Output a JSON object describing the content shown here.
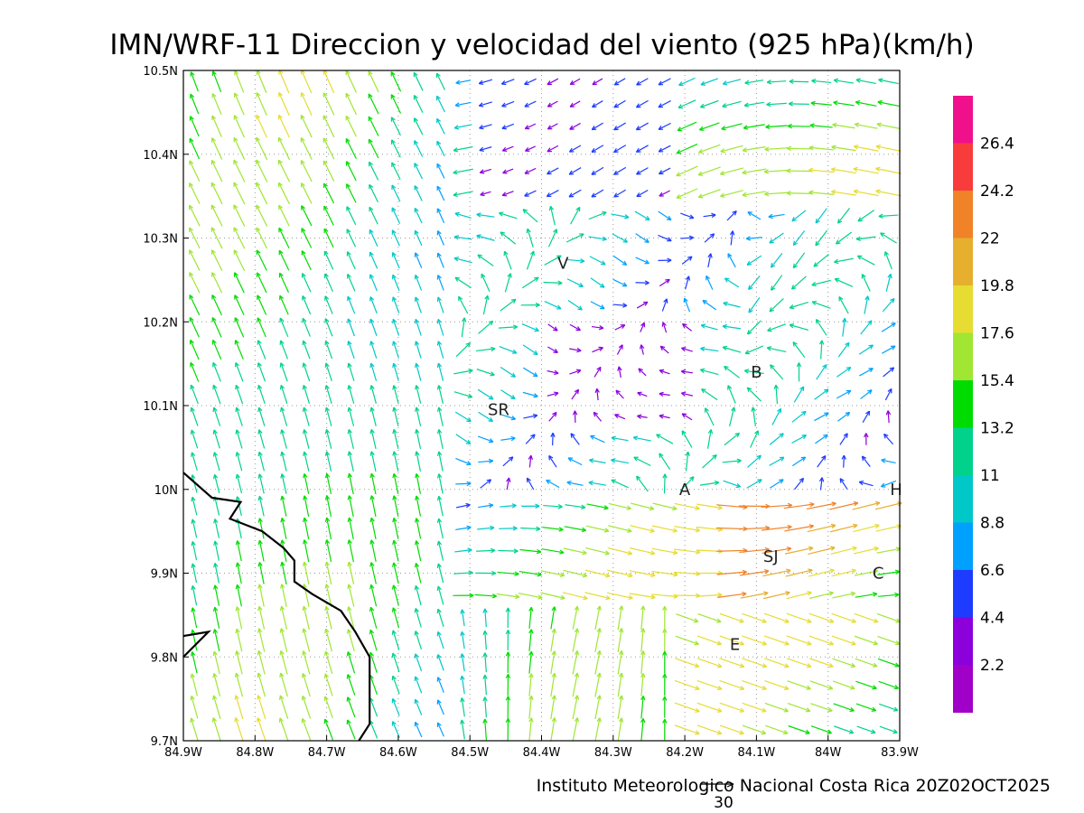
{
  "title": "IMN/WRF-11 Direccion y velocidad del viento (925 hPa)(km/h)",
  "credit": "Instituto Meteorologico Nacional Costa Rica 20Z02OCT2025",
  "reference_vector": {
    "value": "30"
  },
  "axes": {
    "x_ticks": [
      "84.9W",
      "84.8W",
      "84.7W",
      "84.6W",
      "84.5W",
      "84.4W",
      "84.3W",
      "84.2W",
      "84.1W",
      "84W",
      "83.9W"
    ],
    "y_ticks": [
      "10.5N",
      "10.4N",
      "10.3N",
      "10.2N",
      "10.1N",
      "10N",
      "9.9N",
      "9.8N",
      "9.7N"
    ],
    "lon_range": [
      -84.9,
      -83.9
    ],
    "lat_range": [
      9.7,
      10.5
    ]
  },
  "colorbar": {
    "levels": [
      "26.4",
      "24.2",
      "22",
      "19.8",
      "17.6",
      "15.4",
      "13.2",
      "11",
      "8.8",
      "6.6",
      "4.4",
      "2.2"
    ],
    "colors_top_to_bottom": [
      "#f0108c",
      "#f83c3c",
      "#f08228",
      "#e6af2d",
      "#e6dc32",
      "#a0e632",
      "#00dc00",
      "#00d28c",
      "#00c8c8",
      "#00a0ff",
      "#1e3cff",
      "#8c00dc",
      "#a000c8"
    ]
  },
  "places": [
    {
      "label": "V",
      "lon": -84.37,
      "lat": 10.27
    },
    {
      "label": "B",
      "lon": -84.1,
      "lat": 10.14
    },
    {
      "label": "SR",
      "lon": -84.46,
      "lat": 10.095
    },
    {
      "label": "A",
      "lon": -84.2,
      "lat": 10.0
    },
    {
      "label": "SJ",
      "lon": -84.08,
      "lat": 9.92
    },
    {
      "label": "C",
      "lon": -83.93,
      "lat": 9.9
    },
    {
      "label": "E",
      "lon": -84.13,
      "lat": 9.815
    },
    {
      "label": "H",
      "lon": -83.905,
      "lat": 10.0
    }
  ],
  "coastline": [
    [
      -84.9,
      10.02
    ],
    [
      -84.86,
      9.99
    ],
    [
      -84.82,
      9.985
    ],
    [
      -84.835,
      9.965
    ],
    [
      -84.79,
      9.95
    ],
    [
      -84.76,
      9.93
    ],
    [
      -84.745,
      9.915
    ],
    [
      -84.745,
      9.89
    ],
    [
      -84.72,
      9.875
    ],
    [
      -84.68,
      9.855
    ],
    [
      -84.66,
      9.83
    ],
    [
      -84.64,
      9.8
    ],
    [
      -84.64,
      9.77
    ],
    [
      -84.64,
      9.72
    ],
    [
      -84.655,
      9.7
    ]
  ],
  "coastline_islet": [
    [
      -84.9,
      9.8
    ],
    [
      -84.865,
      9.83
    ],
    [
      -84.9,
      9.825
    ]
  ]
}
